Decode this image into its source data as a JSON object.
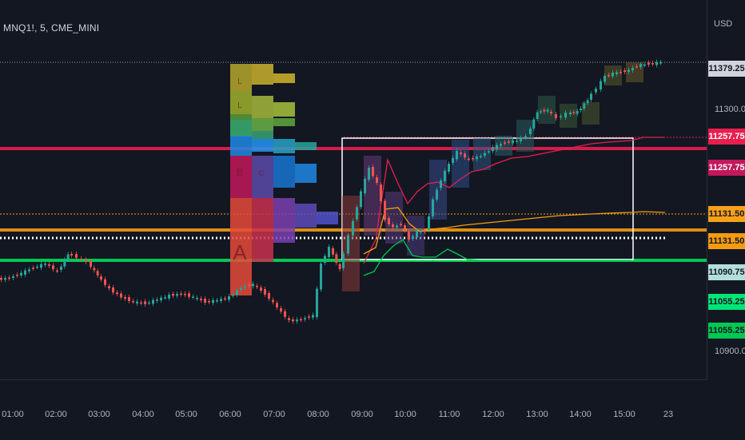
{
  "chart": {
    "symbol_title": "MNQ1!, 5, CME_MINI",
    "currency": "USD",
    "background": "#131722"
  },
  "price_axis": {
    "ticks": [
      "11379.25",
      "11300.00",
      "10900.00"
    ]
  },
  "price_badges": [
    {
      "text": "11379.25",
      "bg": "#d1d4dc",
      "fg": "#131722"
    },
    {
      "text": "11257.75",
      "bg": "#e91e4e",
      "fg": "#ffffff"
    },
    {
      "text": "11257.75",
      "bg": "#c2185b",
      "fg": "#ffffff"
    },
    {
      "text": "11131.50",
      "bg": "#f7a01a",
      "fg": "#131722"
    },
    {
      "text": "11131.50",
      "bg": "#f39c12",
      "fg": "#131722"
    },
    {
      "text": "11090.75",
      "bg": "#b2dfdb",
      "fg": "#131722"
    },
    {
      "text": "11055.25",
      "bg": "#00e676",
      "fg": "#131722"
    },
    {
      "text": "11055.25",
      "bg": "#00c853",
      "fg": "#131722"
    }
  ],
  "time_axis": {
    "ticks": [
      "01:00",
      "02:00",
      "03:00",
      "04:00",
      "05:00",
      "06:00",
      "07:00",
      "08:00",
      "09:00",
      "10:00",
      "11:00",
      "12:00",
      "13:00",
      "14:00",
      "15:00",
      "23"
    ]
  },
  "tpo_letters": [
    "A",
    "B",
    "C",
    "L"
  ],
  "colors": {
    "bull": "#26a69a",
    "bear": "#ef5350",
    "upper_band": "#e91e4e",
    "mid_band": "#f39c12",
    "lower_band": "#00c853",
    "range_box": "#ffffff"
  }
}
